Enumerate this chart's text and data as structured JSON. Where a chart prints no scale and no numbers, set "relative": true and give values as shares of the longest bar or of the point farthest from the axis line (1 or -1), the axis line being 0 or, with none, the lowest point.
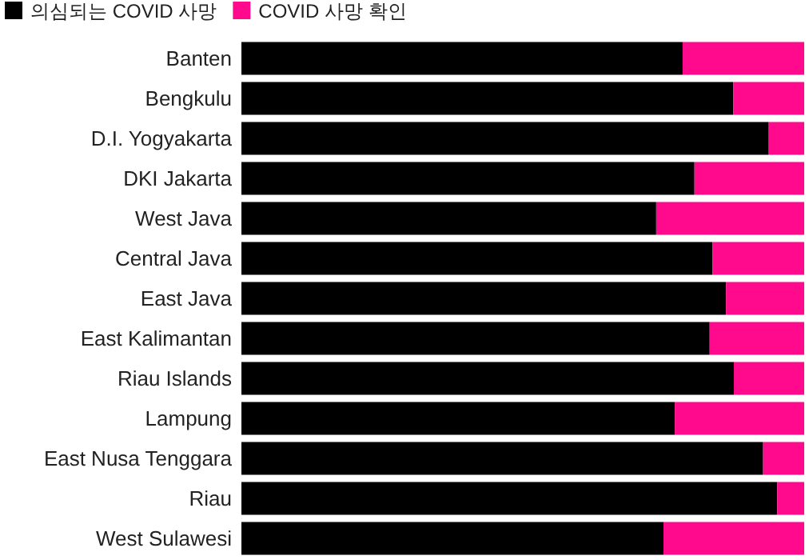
{
  "chart_data": {
    "type": "bar",
    "orientation": "horizontal",
    "stacked": true,
    "relative": true,
    "legend": "top left",
    "categories": [
      "Banten",
      "Bengkulu",
      "D.I. Yogyakarta",
      "DKI Jakarta",
      "West Java",
      "Central Java",
      "East Java",
      "East Kalimantan",
      "Riau Islands",
      "Lampung",
      "East Nusa Tenggara",
      "Riau",
      "West Sulawesi"
    ],
    "series": [
      {
        "name": "의심되는 COVID 사망",
        "color": "#000000",
        "values": [
          0.784,
          0.874,
          0.937,
          0.805,
          0.737,
          0.837,
          0.861,
          0.832,
          0.875,
          0.77,
          0.927,
          0.952,
          0.75
        ]
      },
      {
        "name": "COVID 사망 확인",
        "color": "#ff0a8c",
        "values": [
          0.216,
          0.126,
          0.063,
          0.195,
          0.263,
          0.163,
          0.139,
          0.168,
          0.125,
          0.23,
          0.073,
          0.048,
          0.25
        ]
      }
    ]
  }
}
